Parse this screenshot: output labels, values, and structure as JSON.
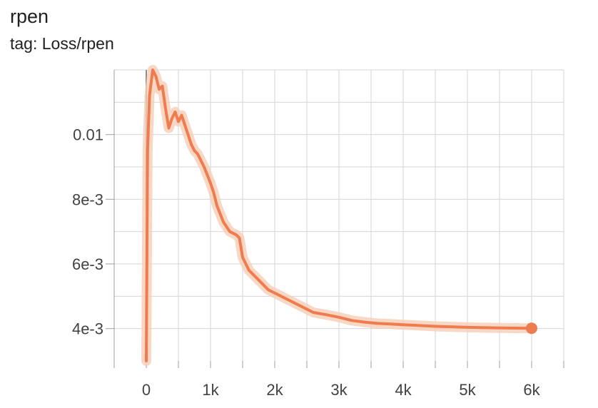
{
  "card": {
    "title": "rpen",
    "subtitle": "tag: Loss/rpen"
  },
  "colors": {
    "series": "#ef7c4e",
    "series_band": "#f8cdb6",
    "grid": "#d6d6d6",
    "axis": "#9e9e9e",
    "zero_line": "#8c8c8c"
  },
  "chart_data": {
    "type": "line",
    "title": "rpen",
    "xlabel": "",
    "ylabel": "",
    "xlim": [
      -500,
      6500
    ],
    "ylim": [
      0.003,
      0.012
    ],
    "x_ticks": [
      0,
      1000,
      2000,
      3000,
      4000,
      5000,
      6000
    ],
    "x_tick_labels": [
      "0",
      "1k",
      "2k",
      "3k",
      "4k",
      "5k",
      "6k"
    ],
    "y_ticks": [
      0.004,
      0.006,
      0.008,
      0.01
    ],
    "y_tick_labels": [
      "4e-3",
      "6e-3",
      "8e-3",
      "0.01"
    ],
    "grid": true,
    "legend": "none",
    "series": [
      {
        "x": [
          0,
          20,
          50,
          100,
          150,
          200,
          250,
          300,
          350,
          400,
          450,
          500,
          550,
          600,
          650,
          700,
          750,
          800,
          900,
          1000,
          1050,
          1100,
          1200,
          1300,
          1400,
          1450,
          1500,
          1550,
          1600,
          1700,
          1800,
          1900,
          2000,
          2100,
          2200,
          2400,
          2600,
          2800,
          3000,
          3200,
          3400,
          3600,
          3800,
          4000,
          4200,
          4500,
          5000,
          5500,
          6000
        ],
        "y": [
          0.003,
          0.0095,
          0.0112,
          0.012,
          0.0118,
          0.0114,
          0.0115,
          0.0108,
          0.0102,
          0.0105,
          0.0107,
          0.0104,
          0.0106,
          0.0103,
          0.01,
          0.0097,
          0.0095,
          0.0094,
          0.009,
          0.0085,
          0.0082,
          0.0078,
          0.0073,
          0.007,
          0.0069,
          0.0068,
          0.0062,
          0.006,
          0.0058,
          0.0056,
          0.0054,
          0.0052,
          0.0051,
          0.005,
          0.0049,
          0.0047,
          0.0045,
          0.00443,
          0.00435,
          0.00425,
          0.0042,
          0.00416,
          0.00414,
          0.00412,
          0.0041,
          0.00407,
          0.00404,
          0.00402,
          0.00401
        ]
      }
    ]
  }
}
